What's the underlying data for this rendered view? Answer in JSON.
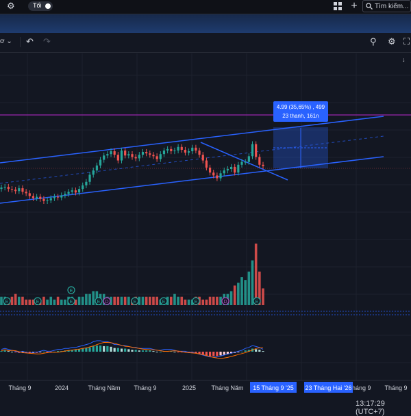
{
  "topbar": {
    "theme_toggle_label": "Tối",
    "search_placeholder": "Tìm kiếm..."
  },
  "toolbar": {
    "left_fragment": "ơ"
  },
  "measure_tooltip": {
    "line1": "4.99 (35,65%) , 499",
    "line2": "23 thanh, 161n"
  },
  "time_axis": {
    "labels": [
      "Tháng 9",
      "2024",
      "Tháng Năm",
      "Tháng 9",
      "2025",
      "Tháng Năm",
      "Tháng 9",
      "Tháng 9"
    ],
    "highlights": [
      "15 Tháng 9 '25",
      "23 Tháng Hai '26"
    ],
    "clock": "13:17:29 (UTC+7)"
  },
  "volume_markers": {
    "earnings": "E",
    "dividend": "D"
  },
  "colors": {
    "background": "#131722",
    "up_candle": "#26a69a",
    "down_candle": "#ef5350",
    "channel_line": "#2962ff",
    "resistance_line": "#9c27b0",
    "accent": "#2962ff"
  },
  "chart_data": {
    "type": "candlestick",
    "price_series_close": [
      2.84,
      2.85,
      2.82,
      2.81,
      2.79,
      2.83,
      2.78,
      2.76,
      2.72,
      2.69,
      2.71,
      2.68,
      2.65,
      2.66,
      2.69,
      2.71,
      2.7,
      2.73,
      2.75,
      2.78,
      2.8,
      2.77,
      2.82,
      2.87,
      2.92,
      3.02,
      3.08,
      3.15,
      3.23,
      3.29,
      3.31,
      3.35,
      3.3,
      3.22,
      3.36,
      3.29,
      3.31,
      3.27,
      3.25,
      3.3,
      3.34,
      3.32,
      3.3,
      3.28,
      3.24,
      3.31,
      3.36,
      3.38,
      3.35,
      3.36,
      3.41,
      3.37,
      3.33,
      3.35,
      3.4,
      3.36,
      3.3,
      3.22,
      3.12,
      3.05,
      3.01,
      2.97,
      3.04,
      3.08,
      3.1,
      3.13,
      3.05,
      3.16,
      3.2,
      3.2,
      3.28,
      3.45,
      3.27,
      3.16,
      3.14
    ],
    "volume_series": [
      3,
      3,
      2,
      3,
      4,
      3,
      3,
      2,
      2,
      2,
      2,
      2,
      3,
      2,
      3,
      2,
      3,
      2,
      2,
      3,
      3,
      2,
      3,
      3,
      4,
      4,
      5,
      5,
      4,
      4,
      3,
      3,
      3,
      3,
      3,
      3,
      3,
      2,
      3,
      3,
      3,
      3,
      3,
      3,
      3,
      2,
      2,
      3,
      3,
      4,
      3,
      3,
      2,
      2,
      2,
      3,
      3,
      2,
      2,
      3,
      3,
      3,
      3,
      4,
      4,
      5,
      7,
      8,
      10,
      9,
      12,
      16,
      22,
      12,
      6
    ],
    "macd_series": [
      0.1,
      0.2,
      0.1,
      0,
      -0.1,
      -0.2,
      -0.1,
      -0.2,
      -0.3,
      -0.2,
      -0.2,
      -0.1,
      0,
      -0.1,
      -0.1,
      0,
      0.1,
      0.1,
      0.2,
      0.2,
      0.3,
      0.3,
      0.4,
      0.5,
      0.6,
      0.7,
      0.9,
      1,
      1,
      0.9,
      0.9,
      0.8,
      0.6,
      0.6,
      0.5,
      0.5,
      0.4,
      0.3,
      0.3,
      0.2,
      0.2,
      0.2,
      0.2,
      0.1,
      0,
      0,
      0.1,
      0.1,
      0.1,
      0,
      -0.1,
      -0.1,
      -0.1,
      -0.2,
      -0.2,
      -0.3,
      -0.4,
      -0.5,
      -0.6,
      -0.7,
      -0.7,
      -0.7,
      -0.6,
      -0.5,
      -0.4,
      -0.3,
      -0.2,
      -0.1,
      0,
      0.2,
      0.3,
      0.5,
      0.4,
      0.3,
      0.1
    ],
    "channel": {
      "upper_start": 3.34,
      "upper_end": 3.84,
      "lower_start": 2.58,
      "lower_end": 3.11
    },
    "resistance_level": 3.65,
    "measure": {
      "change": 4.99,
      "percent": 35.65,
      "bars": 23,
      "days": "161n"
    }
  }
}
